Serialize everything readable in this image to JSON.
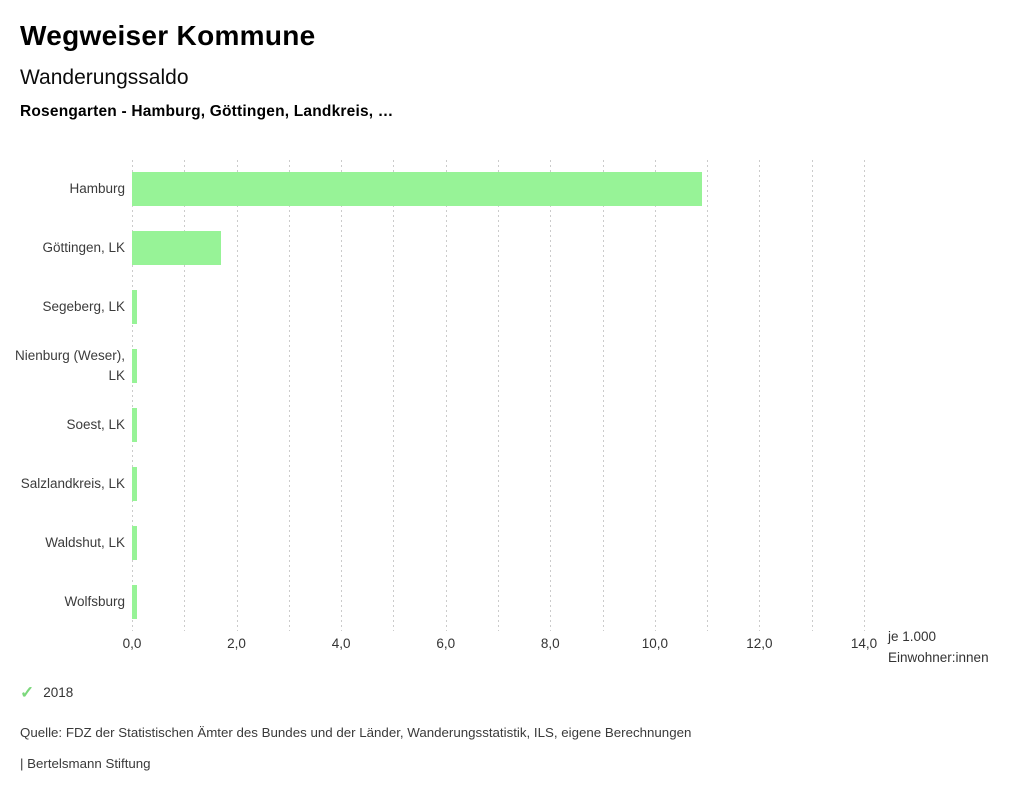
{
  "header": {
    "title": "Wegweiser Kommune",
    "subtitle": "Wanderungssaldo",
    "description": "Rosengarten - Hamburg, Göttingen, Landkreis, …"
  },
  "chart_data": {
    "type": "bar",
    "orientation": "horizontal",
    "title": "Wanderungssaldo",
    "subtitle": "Rosengarten - Hamburg, Göttingen, Landkreis, …",
    "categories": [
      "Hamburg",
      "Göttingen, LK",
      "Segeberg, LK",
      "Nienburg (Weser), LK",
      "Soest, LK",
      "Salzlandkreis, LK",
      "Waldshut, LK",
      "Wolfsburg"
    ],
    "series": [
      {
        "name": "2018",
        "values": [
          10.9,
          1.7,
          0.1,
          0.1,
          0.1,
          0.1,
          0.1,
          0.1
        ]
      }
    ],
    "xlim": [
      0,
      14
    ],
    "x_minor_step": 1,
    "x_ticks": [
      {
        "value": 0,
        "label": "0,0"
      },
      {
        "value": 2,
        "label": "2,0"
      },
      {
        "value": 4,
        "label": "4,0"
      },
      {
        "value": 6,
        "label": "6,0"
      },
      {
        "value": 8,
        "label": "8,0"
      },
      {
        "value": 10,
        "label": "10,0"
      },
      {
        "value": 12,
        "label": "12,0"
      },
      {
        "value": 14,
        "label": "14,0"
      }
    ],
    "x_unit_label": "je 1.000\nEinwohner:innen",
    "grid": "dotted-vertical",
    "legend_position": "bottom-left",
    "colors": {
      "bar": "#97f397",
      "gridline": "#cbcbcb",
      "label_text": "#3b3b3b"
    }
  },
  "legend": {
    "check_icon": "✓",
    "check_color": "#7cd87c",
    "label": "2018"
  },
  "footer": {
    "source": "Quelle: FDZ der Statistischen Ämter des Bundes und der Länder, Wanderungsstatistik, ILS, eigene Berechnungen",
    "attribution": "| Bertelsmann Stiftung"
  }
}
